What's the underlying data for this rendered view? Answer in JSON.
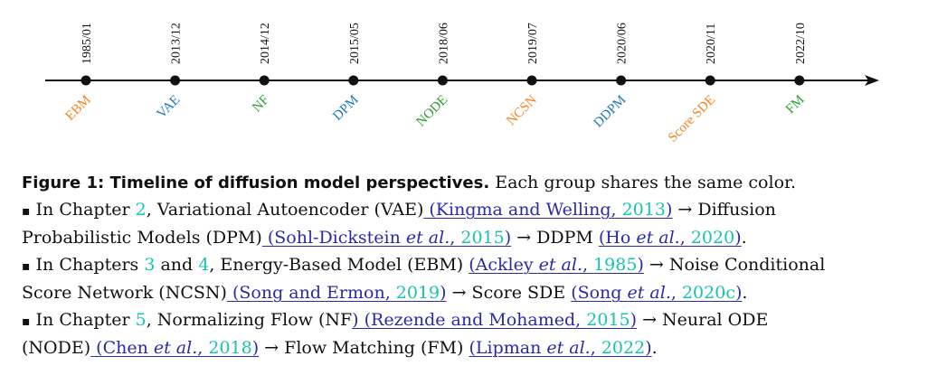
{
  "timeline": {
    "events": [
      {
        "date": "1985/01",
        "model": "EBM",
        "color": "#f58220"
      },
      {
        "date": "2013/12",
        "model": "VAE",
        "color": "#1f77b4"
      },
      {
        "date": "2014/12",
        "model": "NF",
        "color": "#2ca02c"
      },
      {
        "date": "2015/05",
        "model": "DPM",
        "color": "#1f77b4"
      },
      {
        "date": "2018/06",
        "model": "NODE",
        "color": "#2ca02c"
      },
      {
        "date": "2019/07",
        "model": "NCSN",
        "color": "#f58220"
      },
      {
        "date": "2020/06",
        "model": "DDPM",
        "color": "#1f77b4"
      },
      {
        "date": "2020/11",
        "model": "Score SDE",
        "color": "#f58220"
      },
      {
        "date": "2022/10",
        "model": "FM",
        "color": "#2ca02c"
      }
    ]
  },
  "caption": {
    "figure_label": "Figure 1: Timeline of diffusion model perspectives.",
    "figure_rest": " Each group shares the same color.",
    "bullet": "▪",
    "b1": {
      "p1": " In Chapter ",
      "ch": "2",
      "p2": ", Variational Autoencoder (VAE)",
      "c1": " (Kingma and Welling, ",
      "c1y": "2013",
      "c1e": ")",
      "p3": " → Diffusion",
      "p4": "Probabilistic Models (DPM)",
      "c2": " (Sohl-Dickstein ",
      "c2i": "et al.",
      "c2m": ", ",
      "c2y": "2015",
      "c2e": ")",
      "p5": " → DDPM ",
      "c3": "(Ho ",
      "c3i": "et al.",
      "c3m": ", ",
      "c3y": "2020",
      "c3e": ")",
      "p6": "."
    },
    "b2": {
      "p1": " In Chapters ",
      "ch1": "3",
      "and": " and ",
      "ch2": "4",
      "p2": ", Energy-Based Model (EBM) ",
      "c1": "(Ackley ",
      "c1i": "et al.",
      "c1m": ", ",
      "c1y": "1985",
      "c1e": ")",
      "p3": " → Noise Conditional",
      "p4": "Score Network (NCSN)",
      "c2": " (Song and Ermon, ",
      "c2y": "2019",
      "c2e": ")",
      "p5": " → Score SDE ",
      "c3": "(Song ",
      "c3i": "et al.",
      "c3m": ", ",
      "c3y": "2020c",
      "c3e": ")",
      "p6": "."
    },
    "b3": {
      "p1": " In Chapter ",
      "ch": "5",
      "p2": ", Normalizing Flow (NF",
      "c1": ") (Rezende and Mohamed, ",
      "c1y": "2015",
      "c1e": ")",
      "p3": " → Neural ODE",
      "p4": "(NODE)",
      "c2": " (Chen ",
      "c2i": "et al.",
      "c2m": ", ",
      "c2y": "2018",
      "c2e": ")",
      "p5": " → Flow Matching (FM) ",
      "c3": "(Lipman ",
      "c3i": "et al.",
      "c3m": ", ",
      "c3y": "2022",
      "c3e": ")",
      "p6": "."
    }
  }
}
